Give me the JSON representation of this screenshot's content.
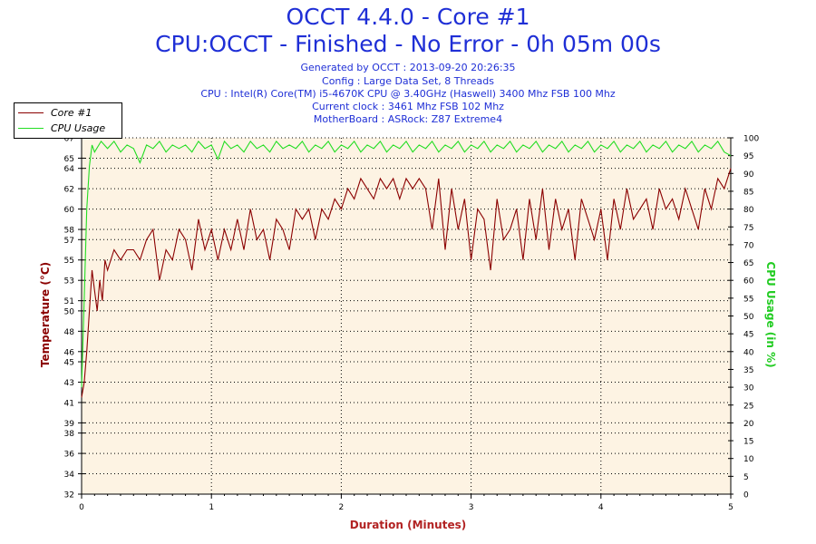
{
  "header": {
    "title": "OCCT 4.4.0 - Core #1",
    "subtitle": "CPU:OCCT - Finished - No Error - 0h 05m 00s",
    "info_lines": [
      "Generated by OCCT : 2013-09-20 20:26:35",
      "Config : Large Data Set, 8 Threads",
      "CPU : Intel(R) Core(TM) i5-4670K CPU @ 3.40GHz (Haswell) 3400 Mhz FSB 100 Mhz",
      "Current clock : 3461 Mhz FSB 102 Mhz",
      "MotherBoard : ASRock: Z87 Extreme4"
    ]
  },
  "colors": {
    "temperature": "#8b0000",
    "cpu_usage": "#22dd22",
    "plot_bg": "#fdf3e3",
    "title": "#1f2fd6",
    "xlabel": "#b22222"
  },
  "chart_data": {
    "type": "line",
    "xlabel": "Duration (Minutes)",
    "ylabel": "Temperature (°C)",
    "y2label": "CPU Usage (in %)",
    "xlim": [
      0,
      5
    ],
    "ylim": [
      32,
      67
    ],
    "y2lim": [
      0,
      100
    ],
    "x_ticks": [
      "0",
      "1",
      "2",
      "3",
      "4",
      "5"
    ],
    "y_ticks": [
      "32",
      "34",
      "36",
      "38",
      "39",
      "41",
      "43",
      "45",
      "46",
      "48",
      "50",
      "51",
      "53",
      "55",
      "57",
      "58",
      "60",
      "62",
      "64",
      "65",
      "67"
    ],
    "y_tick_values": [
      32,
      34,
      36,
      38,
      39,
      41,
      43,
      45,
      46,
      48,
      50,
      51,
      53,
      55,
      57,
      58,
      60,
      62,
      64,
      65,
      67
    ],
    "y2_ticks": [
      "0",
      "5",
      "10",
      "15",
      "20",
      "25",
      "30",
      "35",
      "40",
      "45",
      "50",
      "55",
      "60",
      "65",
      "70",
      "75",
      "80",
      "85",
      "90",
      "95",
      "100"
    ],
    "legend": {
      "position": "top-left",
      "entries": [
        "Core #1",
        "CPU Usage"
      ]
    },
    "grid": true,
    "series": [
      {
        "name": "Core #1",
        "axis": "left",
        "x": [
          0,
          0.02,
          0.04,
          0.06,
          0.08,
          0.1,
          0.12,
          0.14,
          0.16,
          0.18,
          0.2,
          0.25,
          0.3,
          0.35,
          0.4,
          0.45,
          0.5,
          0.55,
          0.6,
          0.65,
          0.7,
          0.75,
          0.8,
          0.85,
          0.9,
          0.95,
          1.0,
          1.05,
          1.1,
          1.15,
          1.2,
          1.25,
          1.3,
          1.35,
          1.4,
          1.45,
          1.5,
          1.55,
          1.6,
          1.65,
          1.7,
          1.75,
          1.8,
          1.85,
          1.9,
          1.95,
          2.0,
          2.05,
          2.1,
          2.15,
          2.2,
          2.25,
          2.3,
          2.35,
          2.4,
          2.45,
          2.5,
          2.55,
          2.6,
          2.65,
          2.7,
          2.75,
          2.8,
          2.85,
          2.9,
          2.95,
          3.0,
          3.05,
          3.1,
          3.15,
          3.2,
          3.25,
          3.3,
          3.35,
          3.4,
          3.45,
          3.5,
          3.55,
          3.6,
          3.65,
          3.7,
          3.75,
          3.8,
          3.85,
          3.9,
          3.95,
          4.0,
          4.05,
          4.1,
          4.15,
          4.2,
          4.25,
          4.3,
          4.35,
          4.4,
          4.45,
          4.5,
          4.55,
          4.6,
          4.65,
          4.7,
          4.75,
          4.8,
          4.85,
          4.9,
          4.95,
          5.0
        ],
        "values": [
          41.5,
          43,
          46,
          50,
          54,
          52,
          50,
          53,
          51,
          55,
          54,
          56,
          55,
          56,
          56,
          55,
          57,
          58,
          53,
          56,
          55,
          58,
          57,
          54,
          59,
          56,
          58,
          55,
          58,
          56,
          59,
          56,
          60,
          57,
          58,
          55,
          59,
          58,
          56,
          60,
          59,
          60,
          57,
          60,
          59,
          61,
          60,
          62,
          61,
          63,
          62,
          61,
          63,
          62,
          63,
          61,
          63,
          62,
          63,
          62,
          58,
          63,
          56,
          62,
          58,
          61,
          55,
          60,
          59,
          54,
          61,
          57,
          58,
          60,
          55,
          61,
          57,
          62,
          56,
          61,
          58,
          60,
          55,
          61,
          59,
          57,
          60,
          55,
          61,
          58,
          62,
          59,
          60,
          61,
          58,
          62,
          60,
          61,
          59,
          62,
          60,
          58,
          62,
          60,
          63,
          62,
          64
        ]
      },
      {
        "name": "CPU Usage",
        "axis": "right",
        "x": [
          0,
          0.02,
          0.04,
          0.06,
          0.08,
          0.1,
          0.15,
          0.2,
          0.25,
          0.3,
          0.35,
          0.4,
          0.45,
          0.5,
          0.55,
          0.6,
          0.65,
          0.7,
          0.75,
          0.8,
          0.85,
          0.9,
          0.95,
          1.0,
          1.05,
          1.1,
          1.15,
          1.2,
          1.25,
          1.3,
          1.35,
          1.4,
          1.45,
          1.5,
          1.55,
          1.6,
          1.65,
          1.7,
          1.75,
          1.8,
          1.85,
          1.9,
          1.95,
          2.0,
          2.05,
          2.1,
          2.15,
          2.2,
          2.25,
          2.3,
          2.35,
          2.4,
          2.45,
          2.5,
          2.55,
          2.6,
          2.65,
          2.7,
          2.75,
          2.8,
          2.85,
          2.9,
          2.95,
          3.0,
          3.05,
          3.1,
          3.15,
          3.2,
          3.25,
          3.3,
          3.35,
          3.4,
          3.45,
          3.5,
          3.55,
          3.6,
          3.65,
          3.7,
          3.75,
          3.8,
          3.85,
          3.9,
          3.95,
          4.0,
          4.05,
          4.1,
          4.15,
          4.2,
          4.25,
          4.3,
          4.35,
          4.4,
          4.45,
          4.5,
          4.55,
          4.6,
          4.65,
          4.7,
          4.75,
          4.8,
          4.85,
          4.9,
          4.95,
          5.0
        ],
        "values": [
          30,
          55,
          80,
          92,
          98,
          96,
          99,
          97,
          99,
          96,
          98,
          97,
          93,
          98,
          97,
          99,
          96,
          98,
          97,
          98,
          96,
          99,
          97,
          98,
          94,
          99,
          97,
          98,
          96,
          99,
          97,
          98,
          96,
          99,
          97,
          98,
          97,
          99,
          96,
          98,
          97,
          99,
          96,
          98,
          97,
          99,
          96,
          98,
          97,
          99,
          96,
          98,
          97,
          99,
          96,
          98,
          97,
          99,
          96,
          98,
          97,
          99,
          96,
          98,
          97,
          99,
          96,
          98,
          97,
          99,
          96,
          98,
          97,
          99,
          96,
          98,
          97,
          99,
          96,
          98,
          97,
          99,
          96,
          98,
          97,
          99,
          96,
          98,
          97,
          99,
          96,
          98,
          97,
          99,
          96,
          98,
          97,
          99,
          96,
          98,
          97,
          99,
          96,
          95
        ]
      }
    ]
  }
}
